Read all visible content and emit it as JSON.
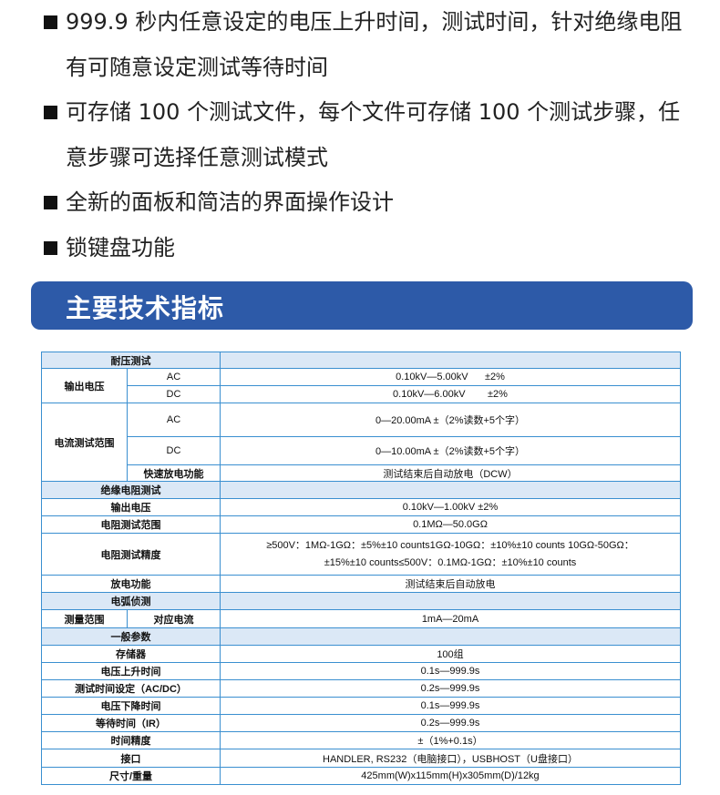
{
  "features": [
    "999.9 秒内任意设定的电压上升时间，测试时间，针对绝缘电阻有可随意设定测试等待时间",
    "可存储 100 个测试文件，每个文件可存储 100 个测试步骤，任意步骤可选择任意测试模式",
    "全新的面板和简洁的界面操作设计",
    "锁键盘功能"
  ],
  "section_title": "主要技术指标",
  "table": {
    "withstand": {
      "title": "耐压测试",
      "output_voltage": "输出电压",
      "ac": "AC",
      "dc": "DC",
      "ac_voltage": "0.10kV—5.00kV      ±2%",
      "dc_voltage": "0.10kV—6.00kV        ±2%",
      "current_range": "电流测试范围",
      "ac_current": "0—20.00mA  ±（2%读数+5个字）",
      "dc_current": "0—10.00mA ±（2%读数+5个字）",
      "fast_discharge": "快速放电功能",
      "fast_discharge_value": "测试结束后自动放电（DCW）"
    },
    "insulation": {
      "title": "绝缘电阻测试",
      "output_voltage": "输出电压",
      "output_voltage_value": "0.10kV—1.00kV  ±2%",
      "range": "电阻测试范围",
      "range_value": "0.1MΩ—50.0GΩ",
      "accuracy": "电阻测试精度",
      "accuracy_line1": "≥500V：1MΩ-1GΩ：±5%±10 counts1GΩ-10GΩ：±10%±10 counts 10GΩ-50GΩ：",
      "accuracy_line2": "±15%±10 counts≤500V：0.1MΩ-1GΩ：±10%±10 counts",
      "discharge": "放电功能",
      "discharge_value": "测试结束后自动放电"
    },
    "arc": {
      "title": "电弧侦测",
      "measure_range": "测量范围",
      "current": "对应电流",
      "current_value": "1mA—20mA"
    },
    "general": {
      "title": "一般参数",
      "rows": [
        {
          "label": "存储器",
          "value": "100组"
        },
        {
          "label": "电压上升时间",
          "value": "0.1s—999.9s"
        },
        {
          "label": "测试时间设定（AC/DC）",
          "value": "0.2s—999.9s"
        },
        {
          "label": "电压下降时间",
          "value": "0.1s—999.9s"
        },
        {
          "label": "等待时间（IR）",
          "value": "0.2s—999.9s"
        },
        {
          "label": "时间精度",
          "value": "±（1%+0.1s）"
        },
        {
          "label": "接口",
          "value": "HANDLER, RS232（电脑接口），USBHOST（U盘接口）"
        },
        {
          "label": "尺寸/重量",
          "value": "425mm(W)x115mm(H)x305mm(D)/12kg"
        }
      ]
    }
  }
}
